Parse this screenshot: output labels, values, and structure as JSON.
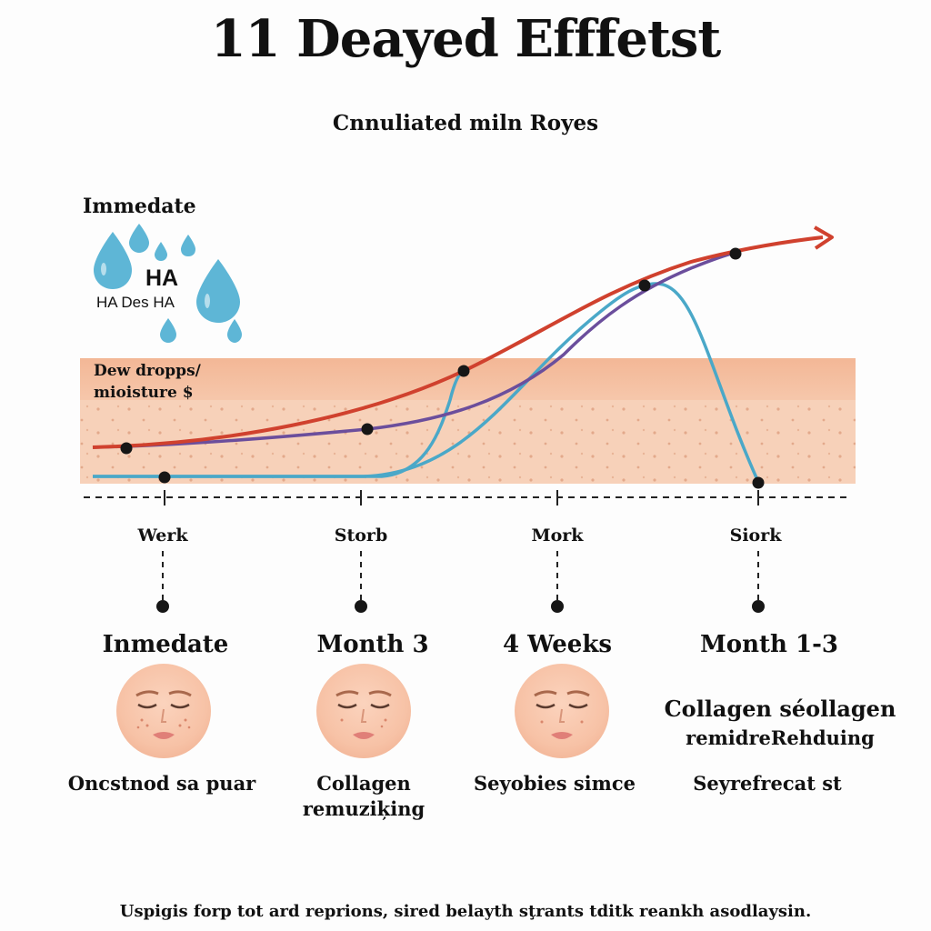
{
  "title": "11 Deayed Efffetst",
  "subtitle": "Cnnuliated miln Royes",
  "top_left": {
    "immediate": "Immedate",
    "ha": "HA",
    "ha_des": "HA Des HA",
    "dew_line1": "Dew dropps/",
    "dew_line2": "mioisture $"
  },
  "ticks": [
    "Werk",
    "Storb",
    "Mork",
    "Siork"
  ],
  "stages": [
    {
      "title": "Inmedate",
      "caption_line1": "Oncstnod sa puar",
      "caption_line2": ""
    },
    {
      "title": "Month 3",
      "caption_line1": "Collagen",
      "caption_line2": "remuziķing"
    },
    {
      "title": "4 Weeks",
      "caption_line1": "Seyobies simce",
      "caption_line2": ""
    },
    {
      "title": "Month 1-3",
      "caption_line1": "Seyrefrecat st",
      "caption_line2": ""
    }
  ],
  "collagen_note": {
    "line1": "Collagen séollagen",
    "line2": "remidreRehduing"
  },
  "footnote": "Uspigis forp tot ard reprions, sired belayth sţrants tditk reankh asodlaysin.",
  "colors": {
    "red_curve": "#d0412e",
    "purple_curve": "#6b4e9c",
    "blue_curve": "#4aa8c8",
    "skin_top": "#f2c1a4",
    "skin_body": "#f6cfb6",
    "drop": "#5eb6d6"
  },
  "icons": [
    "water-drop-icon",
    "face-icon",
    "arrow-right-icon"
  ]
}
